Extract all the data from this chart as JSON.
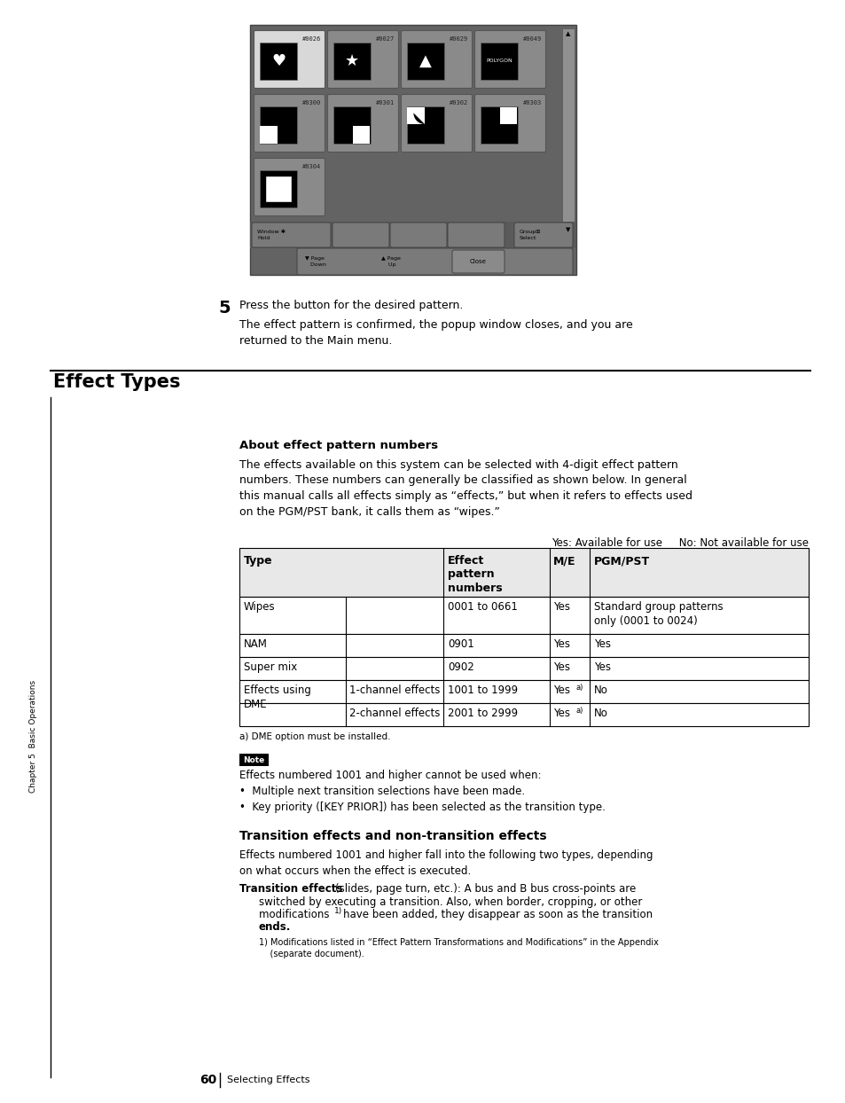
{
  "page_bg": "#ffffff",
  "page_number": "60",
  "page_footer": "Selecting Effects",
  "sidebar_text": "Chapter 5  Basic Operations",
  "step5_text": "Press the button for the desired pattern.",
  "step5_sub": "The effect pattern is confirmed, the popup window closes, and you are\nreturned to the Main menu.",
  "section_title": "Effect Types",
  "subsection_title": "About effect pattern numbers",
  "about_text": "The effects available on this system can be selected with 4-digit effect pattern\nnumbers. These numbers can generally be classified as shown below. In general\nthis manual calls all effects simply as “effects,” but when it refers to effects used\non the PGM/PST bank, it calls them as “wipes.”",
  "table_note_above": "Yes: Available for use     No: Not available for use",
  "table_footnote": "a) DME option must be installed.",
  "note_text": "Effects numbered 1001 and higher cannot be used when:\n•  Multiple next transition selections have been made.\n•  Key priority ([KEY PRIOR]) has been selected as the transition type.",
  "transition_title": "Transition effects and non-transition effects",
  "transition_text1": "Effects numbered 1001 and higher fall into the following two types, depending\non what occurs when the effect is executed.",
  "footnote1": "1) Modifications listed in “Effect Pattern Transformations and Modifications” in the Appendix\n    (separate document).",
  "screen_bg": "#636363",
  "screen_btn_bg": "#8a8a8a",
  "screen_btn_selected": "#d8d8d8",
  "screen_panel_bg": "#717171"
}
